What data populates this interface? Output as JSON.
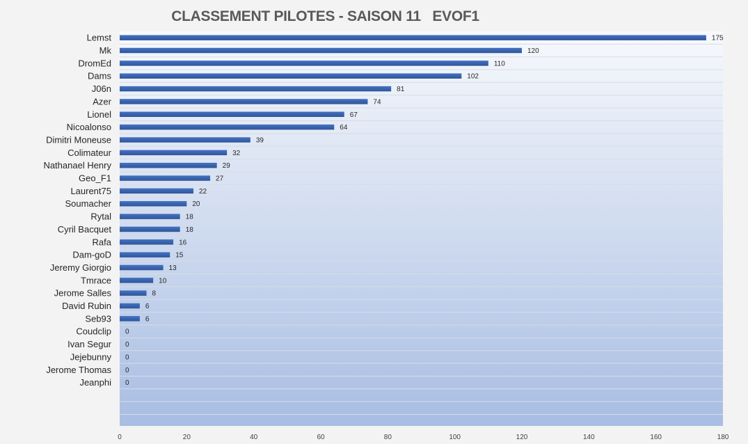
{
  "chart_data": {
    "type": "bar",
    "orientation": "horizontal",
    "title": "CLASSEMENT PILOTES - SAISON 11   EVOF1",
    "xlabel": "",
    "ylabel": "",
    "xlim": [
      0,
      180
    ],
    "ticks": [
      "0",
      "20",
      "40",
      "60",
      "80",
      "100",
      "120",
      "140",
      "160",
      "180"
    ],
    "grid": true,
    "legend": "none",
    "categories": [
      "Lemst",
      "Mk",
      "DromEd",
      "Dams",
      "J06n",
      "Azer",
      "Lionel",
      "Nicoalonso",
      "Dimitri Moneuse",
      "Colimateur",
      "Nathanael Henry",
      "Geo_F1",
      "Laurent75",
      "Soumacher",
      "Rytal",
      "Cyril Bacquet",
      "Rafa",
      "Dam-goD",
      "Jeremy Giorgio",
      "Tmrace",
      "Jerome Salles",
      "David Rubin",
      "Seb93",
      "Coudclip",
      "Ivan Segur",
      "Jejebunny",
      "Jerome Thomas",
      "Jeanphi"
    ],
    "values": [
      175,
      120,
      110,
      102,
      81,
      74,
      67,
      64,
      39,
      32,
      29,
      27,
      22,
      20,
      18,
      18,
      16,
      15,
      13,
      10,
      8,
      6,
      6,
      0,
      0,
      0,
      0,
      0
    ],
    "labels": [
      "175",
      "120",
      "110",
      "102",
      "81",
      "74",
      "67",
      "64",
      "39",
      "32",
      "29",
      "27",
      "22",
      "20",
      "18",
      "18",
      "16",
      "15",
      "13",
      "10",
      "8",
      "6",
      "6",
      "0",
      "0",
      "0",
      "0",
      "0"
    ],
    "colors": {
      "bar": "#4472c4",
      "bar_dark": "#2f5597",
      "plot_top": "#f7f9fc",
      "plot_bottom": "#a8bde3",
      "grid": "#d6dce8"
    }
  }
}
